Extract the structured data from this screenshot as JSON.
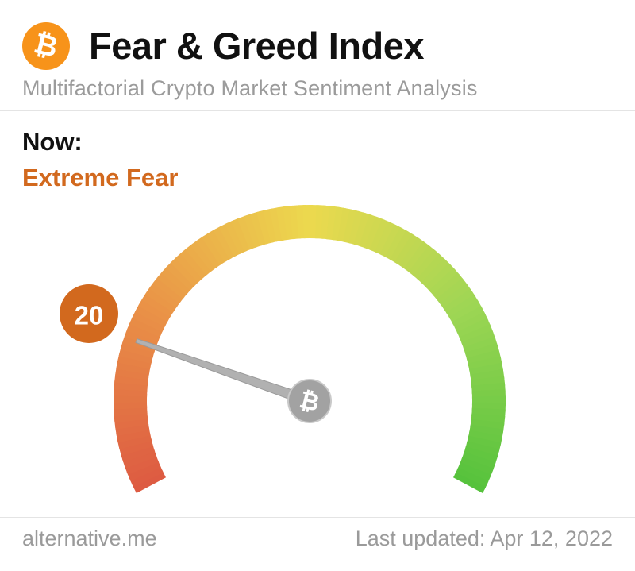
{
  "header": {
    "title": "Fear & Greed Index",
    "subtitle": "Multifactorial Crypto Market Sentiment Analysis"
  },
  "status": {
    "now_label": "Now:",
    "classification": "Extreme Fear",
    "classification_color": "#d2691e"
  },
  "chart_data": {
    "type": "gauge",
    "title": "Fear & Greed Index",
    "value": 20,
    "min": 0,
    "max": 100,
    "classification": "Extreme Fear",
    "start_angle_deg": 208,
    "end_angle_deg": -28,
    "color_stops": [
      {
        "pos": 0.0,
        "color": "#dd5a42"
      },
      {
        "pos": 0.25,
        "color": "#ea9347"
      },
      {
        "pos": 0.5,
        "color": "#ecd94e"
      },
      {
        "pos": 0.75,
        "color": "#9ed654"
      },
      {
        "pos": 1.0,
        "color": "#55c23c"
      }
    ],
    "badge_color": "#d2691e",
    "needle_color": "#b1b1b1",
    "hub_color": "#a2a2a2"
  },
  "footer": {
    "source": "alternative.me",
    "last_updated": "Last updated: Apr 12, 2022"
  },
  "colors": {
    "bitcoin_orange": "#f7931a",
    "title_text": "#111111",
    "muted_text": "#9b9b9b",
    "divider": "#e4e4e4"
  }
}
